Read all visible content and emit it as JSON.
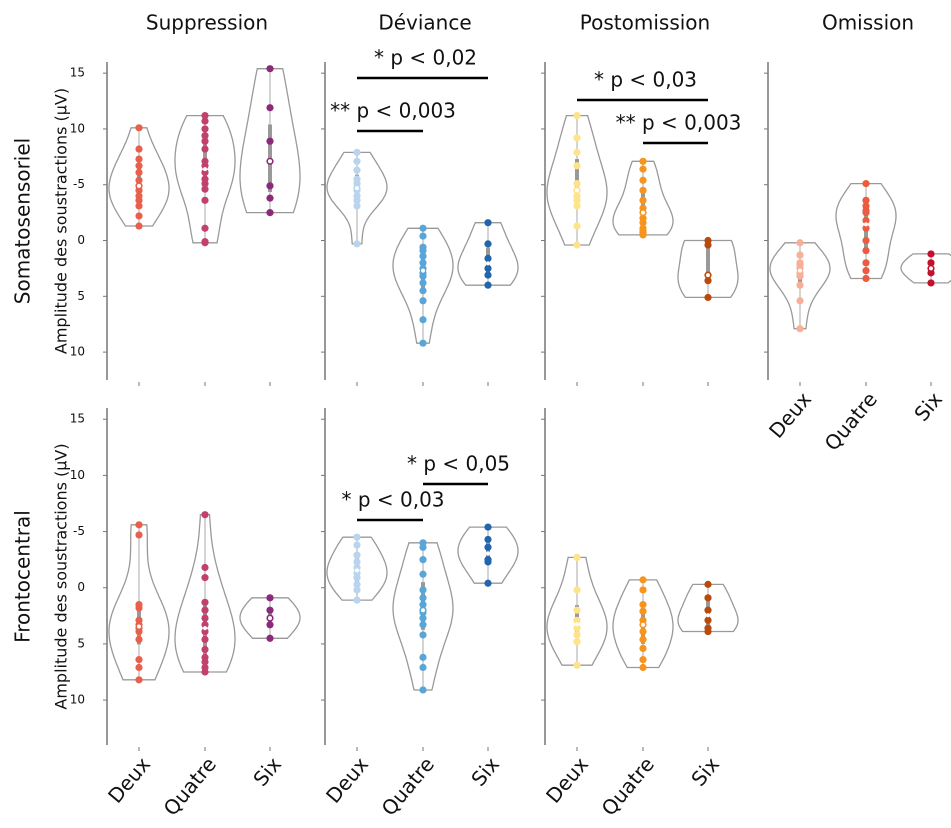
{
  "chart_data": [
    {
      "type": "violin",
      "title": "Suppression",
      "row_label": "Somatosensoriel",
      "ylabel": "Amplitude des soustractions (µV)",
      "ylim": [
        12.5,
        -16
      ],
      "yticks": [
        {
          "value": -15,
          "label": "15"
        },
        {
          "value": -10,
          "label": "10"
        },
        -5,
        0,
        5,
        10
      ],
      "series": [
        {
          "color": "#e8604c",
          "values": [
            -10.1,
            -8.2,
            -7.3,
            -6.7,
            -6.1,
            -5.4,
            -4.9,
            -4.5,
            -4.0,
            -3.6,
            -3.1,
            -2.2,
            -1.3
          ]
        },
        {
          "color": "#c2416b",
          "values": [
            -11.2,
            -10.7,
            -10.0,
            -9.4,
            -8.9,
            -8.2,
            -7.1,
            -6.7,
            -6.1,
            -5.5,
            -5.1,
            -4.6,
            -3.6,
            -1.1,
            0.1,
            0.2
          ]
        },
        {
          "color": "#8b2a7a",
          "values": [
            -15.4,
            -11.9,
            -8.9,
            -7.1,
            -4.9,
            -3.8,
            -2.5
          ]
        }
      ]
    },
    {
      "type": "violin",
      "title": "Déviance",
      "ylim": [
        12.5,
        -16
      ],
      "yticks": [
        -15,
        -10,
        -5,
        0,
        5,
        10
      ],
      "series": [
        {
          "color": "#b8d4ee",
          "values": [
            -7.9,
            -7.1,
            -6.3,
            -5.5,
            -5.1,
            -4.7,
            -4.5,
            -4.0,
            -3.6,
            -3.1,
            0.3
          ]
        },
        {
          "color": "#5aa5d8",
          "values": [
            -1.1,
            -0.4,
            0.6,
            0.9,
            1.4,
            2.0,
            2.5,
            2.9,
            3.2,
            3.8,
            4.5,
            5.4,
            7.1,
            9.2
          ]
        },
        {
          "color": "#2166ac",
          "values": [
            -1.6,
            0.3,
            1.6,
            2.5,
            3.1,
            4.0
          ]
        }
      ],
      "annotations": [
        {
          "text": "** p < 0,003",
          "between": [
            0,
            1
          ]
        },
        {
          "text": "* p < 0,02",
          "between": [
            0,
            2
          ]
        }
      ]
    },
    {
      "type": "violin",
      "title": "Postomission",
      "ylim": [
        12.5,
        -16
      ],
      "yticks": [
        -15,
        -10,
        -5,
        0,
        5,
        10
      ],
      "series": [
        {
          "color": "#fde38a",
          "values": [
            -11.2,
            -9.2,
            -7.9,
            -6.7,
            -5.1,
            -4.5,
            -4.0,
            -3.6,
            -3.1,
            -1.3,
            0.4
          ]
        },
        {
          "color": "#f7941d",
          "values": [
            -7.1,
            -6.4,
            -5.4,
            -4.5,
            -3.6,
            -2.9,
            -2.5,
            -2.0,
            -1.6,
            -1.1,
            -0.9,
            -0.7,
            -0.5
          ]
        },
        {
          "color": "#b94a0b",
          "values": [
            0.0,
            0.4,
            3.1,
            3.6,
            5.1
          ]
        }
      ],
      "annotations": [
        {
          "text": "* p < 0,03",
          "between": [
            0,
            2
          ]
        },
        {
          "text": "** p < 0,003",
          "between": [
            1,
            2
          ]
        }
      ]
    },
    {
      "type": "violin",
      "title": "Omission",
      "ylim": [
        12.5,
        -16
      ],
      "yticks": [
        -15,
        -10,
        -5,
        0,
        5,
        10
      ],
      "categories": [
        "Deux",
        "Quatre",
        "Six"
      ],
      "series": [
        {
          "color": "#f9ae97",
          "values": [
            0.2,
            1.3,
            2.0,
            2.2,
            2.5,
            2.9,
            3.2,
            4.0,
            5.4,
            7.9
          ]
        },
        {
          "color": "#ec5b3f",
          "values": [
            -5.1,
            -3.6,
            -3.1,
            -2.7,
            -2.5,
            -1.8,
            -1.1,
            0.0,
            0.9,
            2.0,
            2.7,
            3.4
          ]
        },
        {
          "color": "#c4102b",
          "values": [
            1.2,
            2.0,
            2.5,
            2.9,
            3.8
          ]
        }
      ]
    },
    {
      "type": "violin",
      "row_label": "Frontocentral",
      "ylabel": "Amplitude des soustractions (µV)",
      "ylim": [
        14,
        -16
      ],
      "yticks": [
        {
          "value": -15,
          "label": "15"
        },
        {
          "value": -10,
          "label": "10"
        },
        -5,
        0,
        5,
        10
      ],
      "categories": [
        "Deux",
        "Quatre",
        "Six"
      ],
      "series": [
        {
          "color": "#e8604c",
          "values": [
            -5.6,
            -4.7,
            1.5,
            1.8,
            2.9,
            3.3,
            3.6,
            3.9,
            4.6,
            6.4,
            7.1,
            8.2
          ]
        },
        {
          "color": "#c2416b",
          "values": [
            -6.5,
            -1.8,
            -0.9,
            1.3,
            2.0,
            2.7,
            3.3,
            3.9,
            4.6,
            5.5,
            6.2,
            6.6,
            7.1,
            7.5
          ]
        },
        {
          "color": "#8b2a7a",
          "values": [
            0.9,
            2.0,
            2.7,
            3.3,
            4.5
          ]
        }
      ]
    },
    {
      "type": "violin",
      "ylim": [
        14,
        -16
      ],
      "yticks": [
        -15,
        -10,
        -5,
        0,
        5,
        10
      ],
      "categories": [
        "Deux",
        "Quatre",
        "Six"
      ],
      "series": [
        {
          "color": "#b8d4ee",
          "values": [
            -4.5,
            -3.8,
            -2.9,
            -2.3,
            -1.8,
            -1.3,
            -0.9,
            -0.3,
            0.2,
            1.1
          ]
        },
        {
          "color": "#5aa5d8",
          "values": [
            -4.0,
            -3.6,
            -2.5,
            -1.2,
            0.2,
            0.9,
            1.5,
            2.0,
            2.2,
            2.7,
            3.3,
            4.2,
            6.2,
            7.1,
            9.1
          ]
        },
        {
          "color": "#2166ac",
          "values": [
            -5.4,
            -4.3,
            -3.6,
            -2.5,
            -2.3,
            -0.4
          ]
        }
      ],
      "annotations": [
        {
          "text": "* p < 0,03",
          "between": [
            0,
            1
          ]
        },
        {
          "text": "* p < 0,05",
          "between": [
            1,
            2
          ]
        }
      ]
    },
    {
      "type": "violin",
      "ylim": [
        14,
        -16
      ],
      "yticks": [
        -15,
        -10,
        -5,
        0,
        5,
        10
      ],
      "categories": [
        "Deux",
        "Quatre",
        "Six"
      ],
      "series": [
        {
          "color": "#fde38a",
          "values": [
            -2.7,
            0.2,
            2.0,
            2.9,
            3.6,
            4.2,
            4.8,
            6.9
          ]
        },
        {
          "color": "#f7941d",
          "values": [
            -0.7,
            0.2,
            1.5,
            2.1,
            2.9,
            3.3,
            3.9,
            4.6,
            5.4,
            6.4,
            7.1
          ]
        },
        {
          "color": "#b94a0b",
          "values": [
            -0.3,
            0.9,
            2.0,
            2.9,
            3.6,
            3.9
          ]
        }
      ]
    }
  ]
}
